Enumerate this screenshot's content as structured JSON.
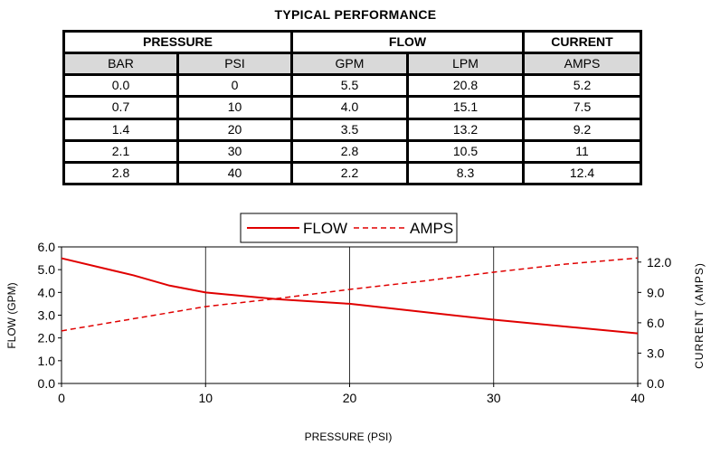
{
  "table": {
    "title": "TYPICAL PERFORMANCE",
    "group_headers": [
      "PRESSURE",
      "FLOW",
      "CURRENT"
    ],
    "unit_headers": [
      "BAR",
      "PSI",
      "GPM",
      "LPM",
      "AMPS"
    ],
    "rows": [
      [
        "0.0",
        "0",
        "5.5",
        "20.8",
        "5.2"
      ],
      [
        "0.7",
        "10",
        "4.0",
        "15.1",
        "7.5"
      ],
      [
        "1.4",
        "20",
        "3.5",
        "13.2",
        "9.2"
      ],
      [
        "2.1",
        "30",
        "2.8",
        "10.5",
        "11"
      ],
      [
        "2.8",
        "40",
        "2.2",
        "8.3",
        "12.4"
      ]
    ]
  },
  "chart_data": {
    "type": "line",
    "xlabel": "PRESSURE (PSI)",
    "ylabel_left": "FLOW (GPM)",
    "ylabel_right": "CURRENT (AMPS)",
    "xlim": [
      0,
      40
    ],
    "ylim_left": [
      0,
      6
    ],
    "ylim_right": [
      0,
      13.5
    ],
    "x_ticks": [
      "0",
      "10",
      "20",
      "30",
      "40"
    ],
    "y_left_ticks": [
      "0.0",
      "1.0",
      "2.0",
      "3.0",
      "4.0",
      "5.0",
      "6.0"
    ],
    "y_right_ticks": [
      "0.0",
      "3.0",
      "6.0",
      "9.0",
      "12.0"
    ],
    "grid": "vertical lines at x ticks",
    "legend": {
      "placement": "top-center",
      "entries": [
        "FLOW",
        "AMPS"
      ]
    },
    "series": [
      {
        "name": "FLOW",
        "axis": "left",
        "style": "solid",
        "color": "#e00000",
        "x": [
          0,
          5,
          7.5,
          10,
          15,
          20,
          25,
          30,
          35,
          40
        ],
        "y": [
          5.5,
          4.75,
          4.3,
          4.0,
          3.7,
          3.5,
          3.15,
          2.8,
          2.5,
          2.2
        ]
      },
      {
        "name": "AMPS",
        "axis": "right",
        "style": "dashed",
        "color": "#e00000",
        "x": [
          0,
          5,
          10,
          15,
          20,
          25,
          30,
          35,
          40
        ],
        "y": [
          5.2,
          6.4,
          7.6,
          8.4,
          9.3,
          10.1,
          11.0,
          11.8,
          12.4
        ]
      }
    ]
  }
}
